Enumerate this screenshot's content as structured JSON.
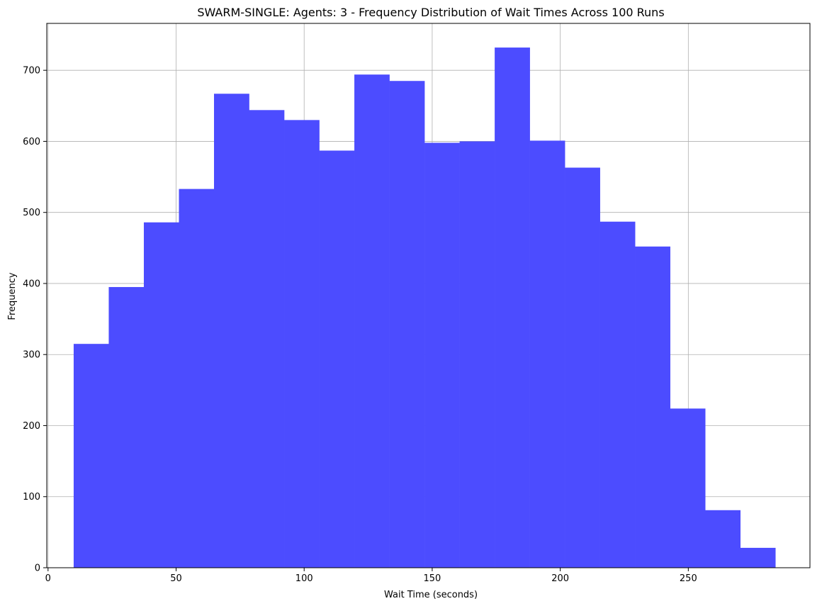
{
  "chart_data": {
    "type": "bar",
    "title": "SWARM-SINGLE: Agents: 3 - Frequency Distribution of Wait Times Across 100 Runs",
    "xlabel": "Wait Time (seconds)",
    "ylabel": "Frequency",
    "bin_edges": [
      10,
      23.7,
      37.4,
      51.1,
      64.8,
      78.5,
      92.2,
      105.9,
      119.6,
      133.3,
      147,
      160.7,
      174.4,
      188.1,
      201.8,
      215.5,
      229.2,
      242.9,
      256.6,
      270.3,
      284
    ],
    "values": [
      315,
      395,
      486,
      533,
      667,
      644,
      630,
      587,
      694,
      685,
      598,
      600,
      732,
      601,
      563,
      487,
      452,
      224,
      81,
      28
    ],
    "xlim": [
      -0.5,
      297.5
    ],
    "ylim": [
      0,
      766
    ],
    "x_ticks": [
      0,
      50,
      100,
      150,
      200,
      250
    ],
    "y_ticks": [
      0,
      100,
      200,
      300,
      400,
      500,
      600,
      700
    ],
    "grid": true,
    "bar_color": "#4c4cff",
    "grid_color": "#b0b0b0"
  }
}
